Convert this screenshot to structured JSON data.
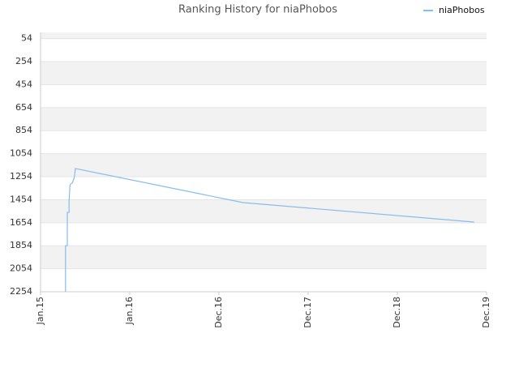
{
  "chart_data": {
    "type": "line",
    "title": "Ranking History for niaPhobos",
    "series": [
      {
        "name": "niaPhobos",
        "color": "#88bbee",
        "x": [
          0.28,
          0.28,
          0.3,
          0.3,
          0.32,
          0.32,
          0.33,
          0.36,
          0.38,
          0.39,
          2.27,
          4.86
        ],
        "values": [
          2254,
          1854,
          1854,
          1564,
          1564,
          1465,
          1324,
          1303,
          1254,
          1183,
          1479,
          1648
        ]
      }
    ],
    "xlim": [
      0,
      5
    ],
    "xticks": [
      {
        "value": 0,
        "label": "Jan.15"
      },
      {
        "value": 1,
        "label": "Jan.16"
      },
      {
        "value": 2,
        "label": "Dec.16"
      },
      {
        "value": 3,
        "label": "Dec.17"
      },
      {
        "value": 4,
        "label": "Dec.18"
      },
      {
        "value": 5,
        "label": "Dec.19"
      }
    ],
    "ylim": [
      2254,
      0
    ],
    "yticks": [
      54,
      254,
      454,
      654,
      854,
      1054,
      1254,
      1454,
      1654,
      1854,
      2054,
      2254
    ],
    "grid": true,
    "legend": "top-right"
  }
}
